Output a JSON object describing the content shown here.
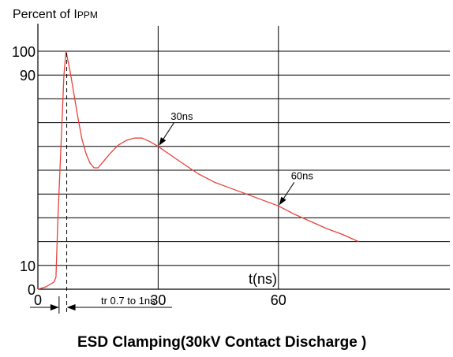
{
  "chart_data": {
    "type": "line",
    "title": "ESD Clamping(30kV Contact Discharge )",
    "ylabel": {
      "main": "Percent of I",
      "sub": "PPM"
    },
    "xlabel": "t(ns)",
    "x_ticks": [
      "0",
      "30",
      "60"
    ],
    "y_ticks": [
      "100",
      "90",
      "10",
      "0"
    ],
    "xlim": [
      0,
      80
    ],
    "ylim": [
      0,
      100
    ],
    "grid": true,
    "series": [
      {
        "color": "#e8413c",
        "points": [
          [
            0,
            0
          ],
          [
            2,
            1
          ],
          [
            4,
            3
          ],
          [
            4.5,
            5
          ],
          [
            5,
            30
          ],
          [
            6,
            70
          ],
          [
            6.5,
            90
          ],
          [
            7,
            100
          ],
          [
            8,
            92
          ],
          [
            9,
            82
          ],
          [
            10,
            72
          ],
          [
            11,
            63
          ],
          [
            12,
            57
          ],
          [
            13,
            53
          ],
          [
            14,
            51
          ],
          [
            15,
            51
          ],
          [
            16,
            53
          ],
          [
            18,
            57
          ],
          [
            20,
            60.5
          ],
          [
            22,
            62.5
          ],
          [
            24,
            63.5
          ],
          [
            26,
            63.5
          ],
          [
            28,
            62
          ],
          [
            30,
            60
          ],
          [
            33,
            56.5
          ],
          [
            36,
            53
          ],
          [
            40,
            48.5
          ],
          [
            44,
            45
          ],
          [
            48,
            42.5
          ],
          [
            52,
            40
          ],
          [
            56,
            37.5
          ],
          [
            60,
            35
          ],
          [
            64,
            31.5
          ],
          [
            68,
            28.5
          ],
          [
            72,
            25.5
          ],
          [
            76,
            23
          ],
          [
            80,
            20
          ]
        ]
      }
    ],
    "annotations": [
      {
        "text": "30ns",
        "x": 30,
        "y": 60
      },
      {
        "text": "60ns",
        "x": 60,
        "y": 35
      },
      {
        "text": "tr 0.7 to 1ns",
        "x_from": 4.5,
        "x_to": 7
      }
    ]
  }
}
